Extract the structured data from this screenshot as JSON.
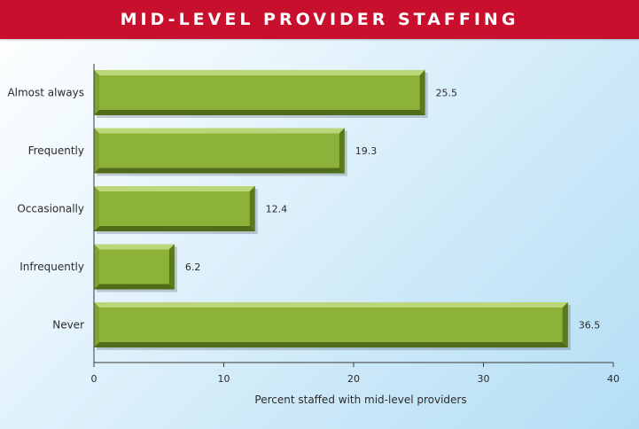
{
  "header": {
    "title": "MID-LEVEL PROVIDER STAFFING"
  },
  "colors": {
    "banner": "#c8102e",
    "bar_face": "#8cb23a",
    "bar_top": "#bcd67a",
    "bar_bottom": "#4f6c1a",
    "bar_side": "#6a8c25"
  },
  "chart_data": {
    "type": "bar",
    "orientation": "horizontal",
    "title": "MID-LEVEL PROVIDER STAFFING",
    "categories": [
      "Almost always",
      "Frequently",
      "Occasionally",
      "Infrequently",
      "Never"
    ],
    "values": [
      25.5,
      19.3,
      12.4,
      6.2,
      36.5
    ],
    "value_labels": [
      "25.5",
      "19.3",
      "12.4",
      "6.2",
      "36.5"
    ],
    "xlabel": "Percent staffed with mid-level providers",
    "ylabel": "",
    "xlim": [
      0,
      40
    ],
    "xticks": [
      "0",
      "10",
      "20",
      "30",
      "40"
    ],
    "grid": false,
    "legend": "none"
  }
}
